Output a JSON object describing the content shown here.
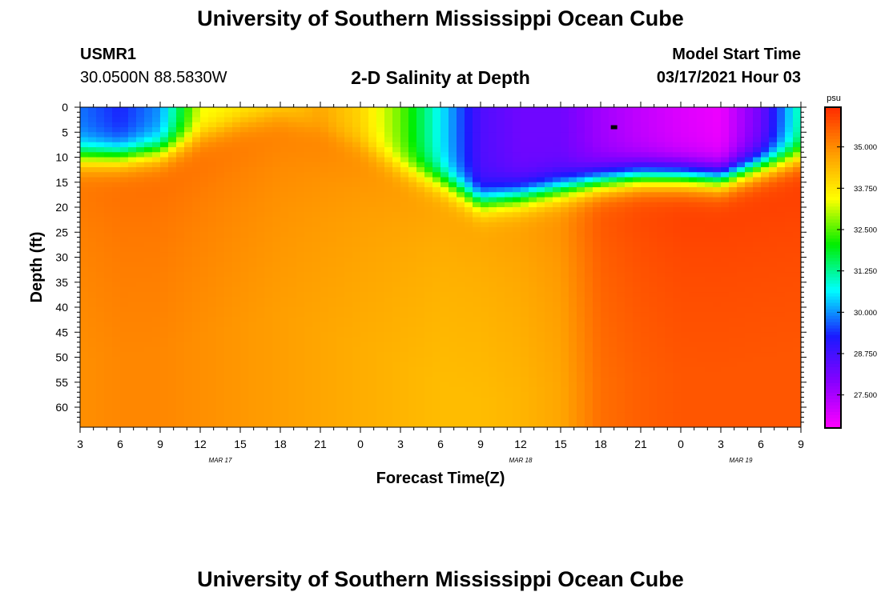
{
  "page_title": "University of Southern Mississippi Ocean Cube",
  "footer_title": "University of Southern Mississippi Ocean Cube",
  "station": {
    "id": "USMR1",
    "coords": "30.0500N 88.5830W"
  },
  "plot_title": "2-D Salinity at Depth",
  "model_start": {
    "label": "Model Start Time",
    "value": "03/17/2021 Hour 03"
  },
  "chart_data": {
    "type": "heatmap",
    "title": "2-D Salinity at Depth",
    "xlabel": "Forecast Time(Z)",
    "ylabel": "Depth (ft)",
    "x_ticks": [
      "3",
      "6",
      "9",
      "12",
      "15",
      "18",
      "21",
      "0",
      "3",
      "6",
      "9",
      "12",
      "15",
      "18",
      "21",
      "0",
      "3",
      "6",
      "9"
    ],
    "x_hours": [
      0,
      3,
      6,
      9,
      12,
      15,
      18,
      21,
      24,
      27,
      30,
      33,
      36,
      39,
      42,
      45,
      48,
      51,
      54
    ],
    "xlim": [
      0,
      54
    ],
    "date_labels": [
      {
        "text": "MAR 17",
        "hour": 10.5
      },
      {
        "text": "MAR 18",
        "hour": 33
      },
      {
        "text": "MAR 19",
        "hour": 49.5
      }
    ],
    "y_ticks": [
      0,
      5,
      10,
      15,
      20,
      25,
      30,
      35,
      40,
      45,
      50,
      55,
      60
    ],
    "ylim": [
      0,
      64
    ],
    "colorbar": {
      "unit": "psu",
      "min": 26.5,
      "max": 36.2,
      "ticks": [
        "35.000",
        "33.750",
        "32.500",
        "31.250",
        "30.000",
        "28.750",
        "27.500"
      ],
      "tick_values": [
        35.0,
        33.75,
        32.5,
        31.25,
        30.0,
        28.75,
        27.5
      ],
      "colors": [
        "#ff00ff",
        "#8800ff",
        "#1a1aff",
        "#00ffff",
        "#00ee00",
        "#ffff00",
        "#ff9a00",
        "#ff2a00"
      ]
    },
    "profile_hours": [
      0,
      3,
      6,
      9,
      12,
      15,
      18,
      21,
      24,
      27,
      30,
      33,
      36,
      39,
      42,
      45,
      48,
      51,
      54
    ],
    "surface_salinity": [
      29.8,
      29.3,
      30.0,
      33.3,
      33.6,
      33.9,
      34.6,
      34.0,
      32.6,
      30.6,
      28.6,
      28.2,
      28.2,
      27.6,
      27.2,
      26.9,
      26.7,
      28.2,
      31.2
    ],
    "halocline_depth_ft": [
      10,
      10,
      9,
      6,
      3.5,
      2,
      5,
      8,
      12,
      15,
      19,
      18,
      16.5,
      15,
      14,
      14,
      14.5,
      12,
      10
    ],
    "bottom_salinity": [
      35.2,
      35.3,
      35.3,
      35.2,
      35.1,
      35.0,
      34.9,
      34.8,
      34.7,
      34.6,
      34.6,
      34.7,
      34.9,
      35.6,
      35.8,
      35.9,
      35.9,
      35.9,
      35.9
    ],
    "marker": {
      "hour": 40,
      "depth_ft": 4
    }
  }
}
